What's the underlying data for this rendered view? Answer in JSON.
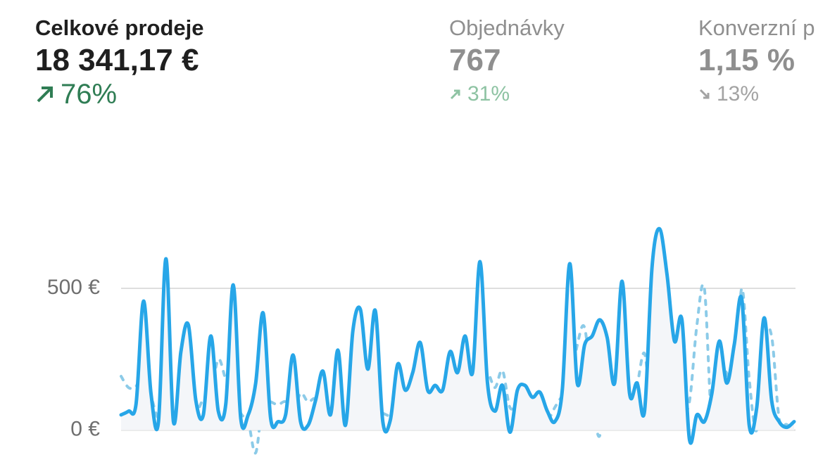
{
  "metrics": [
    {
      "title": "Celkové prodeje",
      "value": "18 341,17 €",
      "change": "76%"
    },
    {
      "title": "Objednávky",
      "value": "767",
      "change": "31%"
    },
    {
      "title": "Konverzní p",
      "value": "1,15 %",
      "change": "13%"
    }
  ],
  "chart_data": {
    "type": "line",
    "ylim": [
      -100,
      800
    ],
    "yticks": [
      {
        "value": 0,
        "label": "0 €"
      },
      {
        "value": 500,
        "label": "500 €"
      }
    ],
    "grid": true,
    "series": [
      {
        "color": "#8ccbe8",
        "style": "dotted",
        "values": [
          190,
          150,
          155,
          200,
          120,
          40,
          60,
          25,
          30,
          70,
          60,
          110,
          130,
          250,
          180,
          140,
          60,
          30,
          -80,
          110,
          100,
          90,
          100,
          60,
          130,
          100,
          110,
          50,
          60,
          30,
          20,
          70,
          70,
          130,
          70,
          60,
          50,
          60,
          20,
          150,
          180,
          130,
          130,
          110,
          150,
          70,
          110,
          150,
          140,
          200,
          150,
          210,
          80,
          100,
          120,
          60,
          20,
          30,
          80,
          120,
          140,
          300,
          360,
          120,
          -20,
          230,
          0,
          260,
          100,
          160,
          270,
          50,
          130,
          340,
          240,
          80,
          100,
          370,
          500,
          40,
          230,
          200,
          120,
          500,
          180,
          0,
          320,
          330,
          40,
          20,
          10
        ]
      },
      {
        "color": "#27a6e8",
        "style": "solid",
        "values": [
          54,
          67,
          92,
          455,
          129,
          30,
          604,
          30,
          277,
          371,
          104,
          54,
          332,
          67,
          92,
          512,
          42,
          54,
          166,
          413,
          42,
          30,
          54,
          265,
          30,
          17,
          104,
          208,
          54,
          282,
          17,
          351,
          426,
          215,
          421,
          30,
          35,
          233,
          141,
          203,
          309,
          141,
          158,
          141,
          277,
          203,
          332,
          203,
          594,
          166,
          67,
          158,
          -7,
          141,
          158,
          116,
          134,
          67,
          30,
          141,
          587,
          166,
          302,
          332,
          389,
          327,
          166,
          525,
          129,
          166,
          67,
          574,
          710,
          550,
          314,
          389,
          -32,
          54,
          30,
          129,
          314,
          166,
          302,
          463,
          17,
          79,
          396,
          104,
          30,
          10,
          30
        ]
      }
    ]
  }
}
